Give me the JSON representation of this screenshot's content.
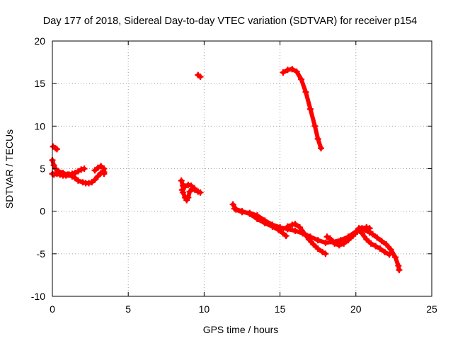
{
  "chart_data": {
    "type": "scatter",
    "title": "Day 177 of 2018, Sidereal Day-to-day VTEC variation (SDTVAR) for receiver p154",
    "xlabel": "GPS time / hours",
    "ylabel": "SDTVAR / TECUs",
    "xlim": [
      0,
      25
    ],
    "ylim": [
      -10,
      20
    ],
    "xticks": [
      0,
      5,
      10,
      15,
      20,
      25
    ],
    "yticks": [
      -10,
      -5,
      0,
      5,
      10,
      15,
      20
    ],
    "xtick_labels": [
      "0",
      "5",
      "10",
      "15",
      "20",
      "25"
    ],
    "ytick_labels": [
      "-10",
      "-5",
      "0",
      "5",
      "10",
      "15",
      "20"
    ],
    "grid": true,
    "marker": "thick-plus",
    "series": [
      {
        "name": "SDTVAR",
        "color": "#ff0000",
        "tracks": [
          {
            "points": [
              [
                0.05,
                7.6
              ],
              [
                0.2,
                7.4
              ],
              [
                0.3,
                7.3
              ]
            ]
          },
          {
            "points": [
              [
                0.0,
                6.0
              ],
              [
                0.1,
                5.4
              ],
              [
                0.2,
                5.0
              ],
              [
                0.4,
                4.7
              ],
              [
                0.7,
                4.5
              ],
              [
                1.0,
                4.3
              ],
              [
                1.3,
                4.1
              ],
              [
                1.5,
                3.9
              ],
              [
                1.7,
                3.6
              ],
              [
                2.0,
                3.4
              ],
              [
                2.2,
                3.3
              ],
              [
                2.4,
                3.3
              ],
              [
                2.6,
                3.4
              ],
              [
                2.8,
                3.7
              ],
              [
                3.0,
                4.1
              ],
              [
                3.2,
                4.5
              ],
              [
                3.4,
                4.6
              ]
            ]
          },
          {
            "points": [
              [
                0.0,
                4.4
              ],
              [
                0.1,
                4.3
              ],
              [
                0.3,
                4.4
              ],
              [
                0.5,
                4.3
              ],
              [
                0.7,
                4.2
              ],
              [
                0.9,
                4.2
              ],
              [
                1.1,
                4.3
              ],
              [
                1.3,
                4.4
              ],
              [
                1.5,
                4.5
              ],
              [
                1.7,
                4.7
              ],
              [
                1.9,
                4.9
              ],
              [
                2.1,
                5.0
              ]
            ]
          },
          {
            "points": [
              [
                2.8,
                4.8
              ],
              [
                3.0,
                5.1
              ],
              [
                3.2,
                5.3
              ],
              [
                3.4,
                5.0
              ],
              [
                3.4,
                4.4
              ]
            ]
          },
          {
            "points": [
              [
                8.5,
                3.6
              ],
              [
                8.6,
                3.0
              ],
              [
                8.6,
                2.2
              ],
              [
                8.75,
                1.6
              ],
              [
                8.85,
                1.3
              ],
              [
                8.95,
                1.6
              ],
              [
                9.05,
                2.3
              ],
              [
                9.2,
                2.6
              ],
              [
                9.4,
                2.5
              ],
              [
                9.6,
                2.3
              ],
              [
                9.75,
                2.2
              ]
            ]
          },
          {
            "points": [
              [
                8.55,
                2.5
              ],
              [
                8.75,
                2.9
              ],
              [
                8.95,
                3.1
              ],
              [
                9.15,
                3.0
              ],
              [
                9.35,
                2.7
              ]
            ]
          },
          {
            "points": [
              [
                9.6,
                16.0
              ],
              [
                9.75,
                15.8
              ]
            ]
          },
          {
            "points": [
              [
                15.2,
                16.3
              ],
              [
                15.5,
                16.6
              ],
              [
                15.8,
                16.7
              ],
              [
                16.1,
                16.4
              ],
              [
                16.4,
                15.5
              ],
              [
                16.7,
                14.0
              ],
              [
                17.0,
                12.0
              ],
              [
                17.3,
                10.0
              ],
              [
                17.5,
                8.5
              ],
              [
                17.7,
                7.4
              ]
            ]
          },
          {
            "points": [
              [
                11.9,
                0.8
              ],
              [
                12.1,
                0.2
              ],
              [
                12.5,
                -0.1
              ],
              [
                13.0,
                -0.2
              ],
              [
                13.5,
                -0.5
              ],
              [
                14.0,
                -1.1
              ],
              [
                14.5,
                -1.6
              ],
              [
                15.0,
                -1.9
              ],
              [
                15.5,
                -2.1
              ],
              [
                16.0,
                -2.3
              ],
              [
                16.5,
                -2.6
              ],
              [
                17.0,
                -3.0
              ],
              [
                17.5,
                -3.4
              ],
              [
                18.0,
                -3.7
              ],
              [
                18.5,
                -3.6
              ],
              [
                19.0,
                -3.4
              ],
              [
                19.5,
                -3.0
              ],
              [
                20.0,
                -2.4
              ],
              [
                20.3,
                -2.1
              ],
              [
                20.6,
                -2.2
              ],
              [
                20.9,
                -2.5
              ]
            ]
          },
          {
            "points": [
              [
                12.0,
                0.3
              ],
              [
                12.5,
                0.0
              ],
              [
                13.0,
                -0.3
              ],
              [
                13.5,
                -0.9
              ],
              [
                14.0,
                -1.4
              ],
              [
                14.5,
                -1.8
              ],
              [
                14.9,
                -2.2
              ],
              [
                15.2,
                -2.6
              ],
              [
                15.4,
                -2.9
              ]
            ]
          },
          {
            "points": [
              [
                15.5,
                -1.8
              ],
              [
                15.8,
                -1.6
              ],
              [
                16.0,
                -1.5
              ],
              [
                16.3,
                -1.9
              ],
              [
                16.6,
                -2.6
              ],
              [
                16.9,
                -3.3
              ],
              [
                17.2,
                -3.9
              ],
              [
                17.5,
                -4.4
              ],
              [
                17.8,
                -4.8
              ],
              [
                18.0,
                -5.0
              ]
            ]
          },
          {
            "points": [
              [
                18.1,
                -3.0
              ],
              [
                18.3,
                -3.2
              ],
              [
                18.6,
                -3.8
              ],
              [
                18.9,
                -4.0
              ],
              [
                19.2,
                -3.8
              ],
              [
                19.5,
                -3.4
              ],
              [
                19.8,
                -2.9
              ],
              [
                20.1,
                -2.4
              ],
              [
                20.4,
                -2.0
              ],
              [
                20.7,
                -1.9
              ],
              [
                20.9,
                -2.0
              ]
            ]
          },
          {
            "points": [
              [
                20.2,
                -2.0
              ],
              [
                20.4,
                -2.6
              ],
              [
                20.7,
                -3.3
              ],
              [
                21.0,
                -3.8
              ],
              [
                21.3,
                -4.1
              ],
              [
                21.6,
                -4.4
              ],
              [
                21.9,
                -4.8
              ],
              [
                22.2,
                -5.1
              ]
            ]
          },
          {
            "points": [
              [
                20.8,
                -2.3
              ],
              [
                21.1,
                -2.7
              ],
              [
                21.4,
                -3.1
              ],
              [
                21.7,
                -3.5
              ],
              [
                22.0,
                -3.9
              ],
              [
                22.3,
                -4.5
              ],
              [
                22.6,
                -5.4
              ],
              [
                22.8,
                -6.4
              ],
              [
                22.85,
                -6.9
              ]
            ]
          }
        ]
      }
    ]
  }
}
